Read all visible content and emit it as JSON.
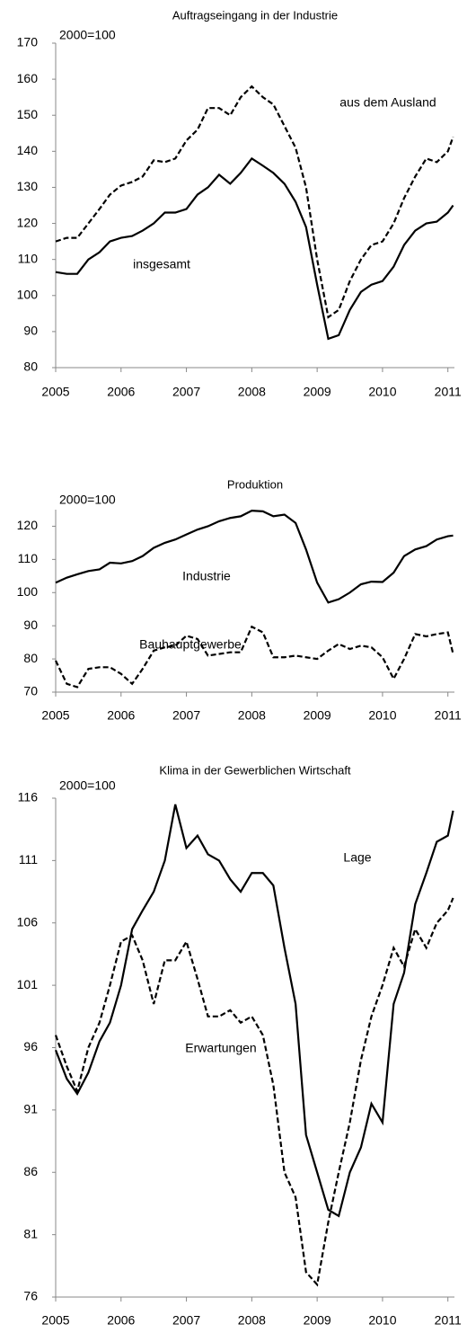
{
  "chart_data": [
    {
      "type": "line",
      "title": "Auftragseingang in der Industrie",
      "unit_note": "2000=100",
      "x": [
        2005,
        2005.17,
        2005.33,
        2005.5,
        2005.67,
        2005.83,
        2006,
        2006.17,
        2006.33,
        2006.5,
        2006.67,
        2006.83,
        2007,
        2007.17,
        2007.33,
        2007.5,
        2007.67,
        2007.83,
        2008,
        2008.17,
        2008.33,
        2008.5,
        2008.67,
        2008.83,
        2009,
        2009.17,
        2009.33,
        2009.5,
        2009.67,
        2009.83,
        2010,
        2010.17,
        2010.33,
        2010.5,
        2010.67,
        2010.83,
        2011,
        2011.08
      ],
      "series": [
        {
          "name": "aus dem Ausland",
          "color": "#000000",
          "line_style": "dashed",
          "values": [
            115,
            116,
            116,
            120,
            124,
            128,
            130.5,
            131.5,
            133,
            137.5,
            137,
            138,
            143,
            146,
            152,
            152,
            150,
            155,
            158,
            155,
            153,
            147,
            141,
            130,
            110,
            94,
            96,
            104,
            110,
            114,
            115,
            120,
            127,
            133,
            138,
            137,
            140,
            144
          ]
        },
        {
          "name": "insgesamt",
          "color": "#000000",
          "line_style": "solid",
          "values": [
            106.5,
            106,
            106,
            110,
            112,
            115,
            116,
            116.5,
            118,
            120,
            123,
            123,
            124,
            128,
            130,
            133.5,
            131,
            134,
            138,
            136,
            134,
            131,
            126,
            119,
            103,
            88,
            89,
            96,
            101,
            103,
            104,
            108,
            114,
            118,
            120,
            120.5,
            123,
            125
          ]
        }
      ],
      "xlim": [
        2005,
        2011.1
      ],
      "xticks": [
        2005,
        2006,
        2007,
        2008,
        2009,
        2010,
        2011
      ],
      "ylim": [
        80,
        170
      ],
      "yticks": [
        80,
        90,
        100,
        110,
        120,
        130,
        140,
        150,
        160,
        170
      ]
    },
    {
      "type": "line",
      "title": "Produktion",
      "unit_note": "2000=100",
      "x": [
        2005,
        2005.17,
        2005.33,
        2005.5,
        2005.67,
        2005.83,
        2006,
        2006.17,
        2006.33,
        2006.5,
        2006.67,
        2006.83,
        2007,
        2007.17,
        2007.33,
        2007.5,
        2007.67,
        2007.83,
        2008,
        2008.17,
        2008.33,
        2008.5,
        2008.67,
        2008.83,
        2009,
        2009.17,
        2009.33,
        2009.5,
        2009.67,
        2009.83,
        2010,
        2010.17,
        2010.33,
        2010.5,
        2010.67,
        2010.83,
        2011,
        2011.08
      ],
      "series": [
        {
          "name": "Industrie",
          "color": "#000000",
          "line_style": "solid",
          "values": [
            103,
            104.5,
            105.5,
            106.5,
            107,
            109,
            108.8,
            109.5,
            111,
            113.5,
            115,
            116,
            117.5,
            119,
            120,
            121.5,
            122.5,
            123,
            124.7,
            124.5,
            123,
            123.5,
            121,
            113,
            103,
            97,
            98,
            100,
            102.5,
            103.3,
            103.2,
            106,
            111,
            113,
            114,
            116,
            117,
            117.2
          ]
        },
        {
          "name": "Bauhauptgewerbe",
          "color": "#000000",
          "line_style": "dashed",
          "values": [
            79.5,
            72.5,
            71.5,
            77,
            77.5,
            77.5,
            75.5,
            72.5,
            77,
            82.5,
            83.5,
            84,
            87,
            86,
            81,
            81.5,
            82,
            82,
            89.7,
            88,
            80.5,
            80.5,
            81,
            80.5,
            80,
            82.5,
            84.5,
            83,
            84,
            83.5,
            80.5,
            74,
            80,
            87.5,
            86.8,
            87.5,
            88,
            81.5
          ]
        }
      ],
      "xlim": [
        2005,
        2011.1
      ],
      "xticks": [
        2005,
        2006,
        2007,
        2008,
        2009,
        2010,
        2011
      ],
      "ylim": [
        70,
        125
      ],
      "yticks": [
        70,
        80,
        90,
        100,
        110,
        120
      ]
    },
    {
      "type": "line",
      "title": "Klima in der Gewerblichen Wirtschaft",
      "unit_note": "2000=100",
      "x": [
        2005,
        2005.17,
        2005.33,
        2005.5,
        2005.67,
        2005.83,
        2006,
        2006.17,
        2006.33,
        2006.5,
        2006.67,
        2006.83,
        2007,
        2007.17,
        2007.33,
        2007.5,
        2007.67,
        2007.83,
        2008,
        2008.17,
        2008.33,
        2008.5,
        2008.67,
        2008.83,
        2009,
        2009.17,
        2009.33,
        2009.5,
        2009.67,
        2009.83,
        2010,
        2010.17,
        2010.33,
        2010.5,
        2010.67,
        2010.83,
        2011,
        2011.08
      ],
      "series": [
        {
          "name": "Lage",
          "color": "#000000",
          "line_style": "solid",
          "values": [
            95.8,
            93.5,
            92.3,
            94,
            96.5,
            98,
            101,
            105.5,
            107,
            108.5,
            111,
            115.5,
            112,
            113,
            111.5,
            111,
            109.5,
            108.5,
            110,
            110,
            109,
            104,
            99.5,
            89,
            86,
            83,
            82.5,
            86,
            88,
            91.5,
            90,
            99.5,
            102,
            107.5,
            110,
            112.5,
            113,
            115
          ]
        },
        {
          "name": "Erwartungen",
          "color": "#000000",
          "line_style": "dashed",
          "values": [
            97,
            94.5,
            92.5,
            96,
            98,
            101,
            104.5,
            105,
            103,
            99.5,
            103,
            103,
            104.5,
            101.5,
            98.5,
            98.5,
            99,
            98,
            98.5,
            97,
            93,
            86,
            84,
            78,
            77,
            82,
            86,
            90,
            95,
            98.5,
            101,
            104,
            102.5,
            105.5,
            104,
            106,
            107,
            108
          ]
        }
      ],
      "xlim": [
        2005,
        2011.1
      ],
      "xticks": [
        2005,
        2006,
        2007,
        2008,
        2009,
        2010,
        2011
      ],
      "ylim": [
        76,
        116
      ],
      "yticks": [
        76,
        81,
        86,
        91,
        96,
        101,
        106,
        111,
        116
      ]
    }
  ]
}
